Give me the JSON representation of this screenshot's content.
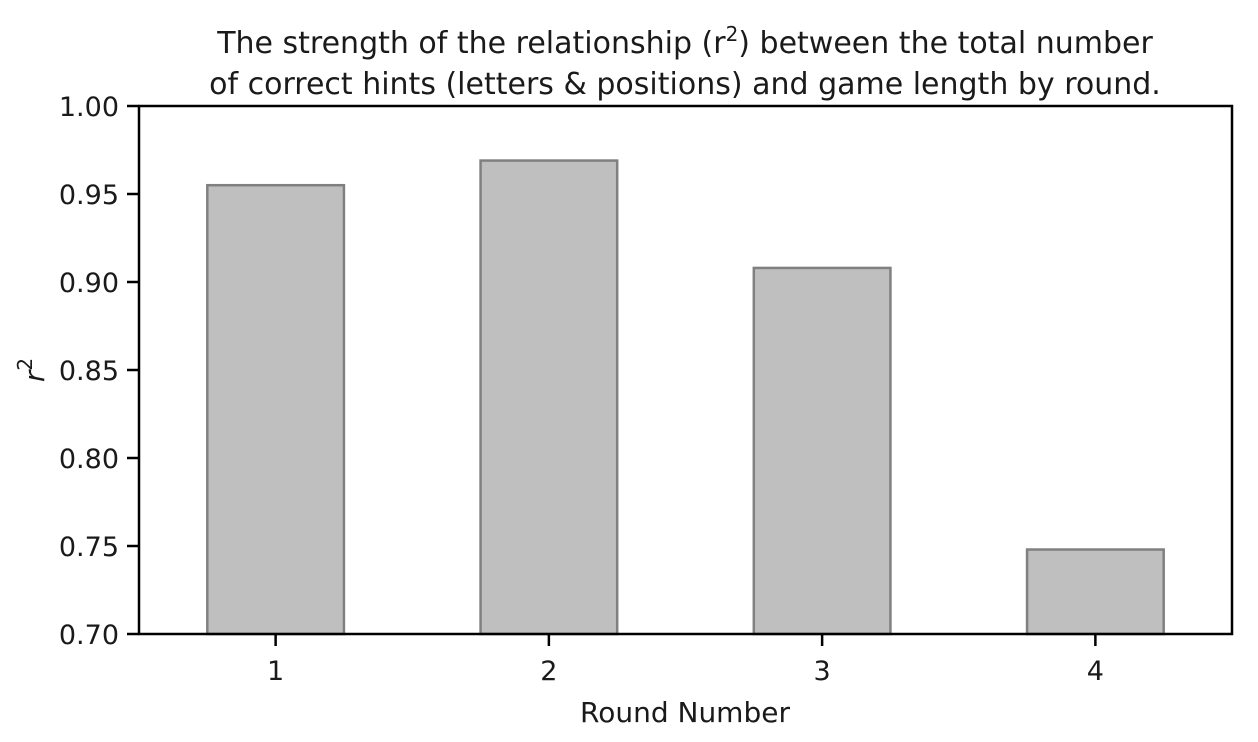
{
  "chart_data": {
    "type": "bar",
    "title_lines": [
      "The strength of the relationship (r",
      "of correct hints (letters & positions) and game length by round."
    ],
    "title_r_symbol": "r",
    "title_superscript": "2",
    "title_line1_tail": ") between the total number",
    "xlabel": "Round Number",
    "ylabel": "r",
    "ylabel_superscript": "2",
    "categories": [
      "1",
      "2",
      "3",
      "4"
    ],
    "values": [
      0.955,
      0.969,
      0.908,
      0.748
    ],
    "ylim": [
      0.7,
      1.0
    ],
    "yticks": [
      "0.70",
      "0.75",
      "0.80",
      "0.85",
      "0.90",
      "0.95",
      "1.00"
    ],
    "grid": false,
    "bar_color": "#bfbfbf",
    "bar_edge_color": "#808080"
  }
}
